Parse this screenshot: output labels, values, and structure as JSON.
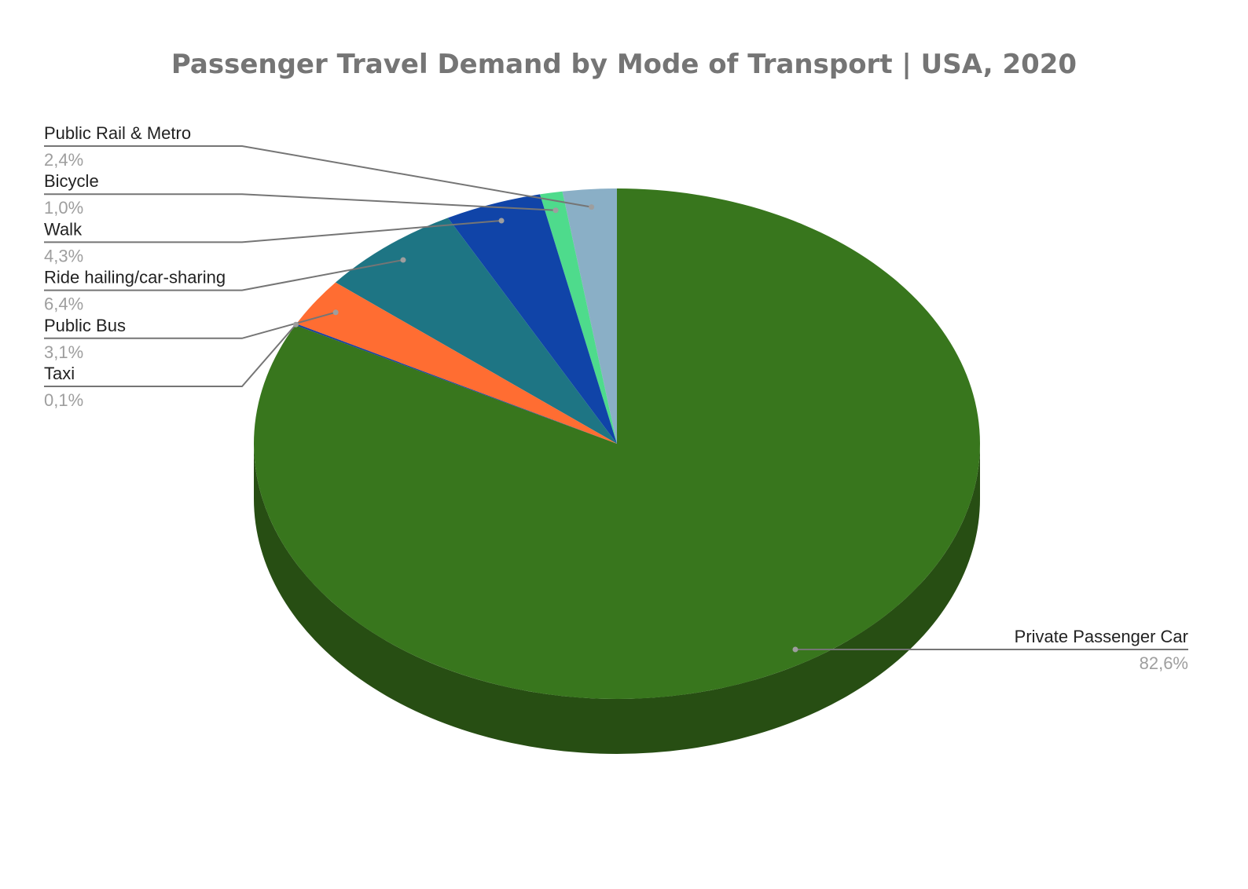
{
  "chart_data": {
    "type": "pie",
    "style": "3d",
    "title": "Passenger Travel Demand by Mode of Transport | USA, 2020",
    "slices": [
      {
        "label": "Public Rail & Metro",
        "value": 2.4,
        "value_label": "2,4%",
        "color": "#8AAFC6"
      },
      {
        "label": "Bicycle",
        "value": 1.0,
        "value_label": "1,0%",
        "color": "#4EDB8C"
      },
      {
        "label": "Walk",
        "value": 4.3,
        "value_label": "4,3%",
        "color": "#1044A8"
      },
      {
        "label": "Ride hailing/car-sharing",
        "value": 6.4,
        "value_label": "6,4%",
        "color": "#1E7584"
      },
      {
        "label": "Public Bus",
        "value": 3.1,
        "value_label": "3,1%",
        "color": "#FF6D32"
      },
      {
        "label": "Taxi",
        "value": 0.1,
        "value_label": "0,1%",
        "color": "#1B3FA0"
      },
      {
        "label": "Private Passenger Car",
        "value": 82.6,
        "value_label": "82,6%",
        "color": "#38761D"
      }
    ],
    "side_color": "#274E13"
  }
}
